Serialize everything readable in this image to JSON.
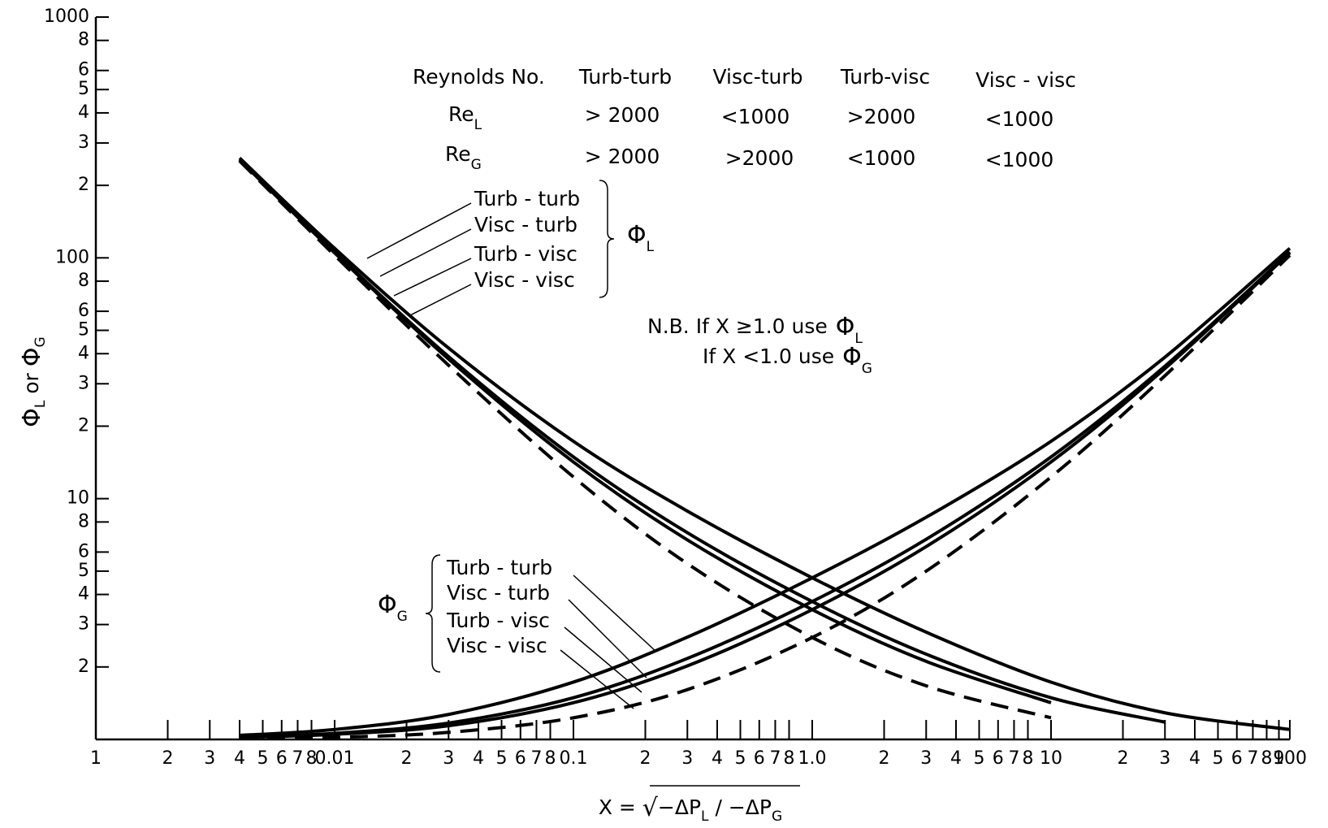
{
  "chart_data": {
    "type": "line",
    "log_x": true,
    "log_y": true,
    "xlim": [
      0.001,
      100
    ],
    "ylim": [
      1,
      1000
    ],
    "xticks": [
      {
        "value": 0.001,
        "label": "1"
      },
      {
        "value": 0.002,
        "label": "2"
      },
      {
        "value": 0.003,
        "label": "3"
      },
      {
        "value": 0.004,
        "label": "4"
      },
      {
        "value": 0.005,
        "label": "5"
      },
      {
        "value": 0.006,
        "label": "6"
      },
      {
        "value": 0.007,
        "label": "7"
      },
      {
        "value": 0.008,
        "label": "8"
      },
      0.01,
      {
        "value": 0.02,
        "label": "2"
      },
      {
        "value": 0.03,
        "label": "3"
      },
      {
        "value": 0.04,
        "label": "4"
      },
      {
        "value": 0.05,
        "label": "5"
      },
      {
        "value": 0.06,
        "label": "6"
      },
      {
        "value": 0.07,
        "label": "7"
      },
      {
        "value": 0.08,
        "label": "8"
      },
      0.1,
      {
        "value": 0.2,
        "label": "2"
      },
      {
        "value": 0.3,
        "label": "3"
      },
      {
        "value": 0.4,
        "label": "4"
      },
      {
        "value": 0.5,
        "label": "5"
      },
      {
        "value": 0.6,
        "label": "6"
      },
      {
        "value": 0.7,
        "label": "7"
      },
      {
        "value": 0.8,
        "label": "8"
      },
      {
        "value": 1,
        "label": "1.0"
      },
      2,
      3,
      4,
      5,
      6,
      7,
      8,
      10,
      {
        "value": 20,
        "label": "2"
      },
      {
        "value": 30,
        "label": "3"
      },
      {
        "value": 40,
        "label": "4"
      },
      {
        "value": 50,
        "label": "5"
      },
      {
        "value": 60,
        "label": "6"
      },
      {
        "value": 70,
        "label": "7"
      },
      {
        "value": 80,
        "label": "8"
      },
      {
        "value": 90,
        "label": "9"
      },
      100
    ],
    "yticks": [
      2,
      3,
      4,
      5,
      6,
      8,
      10,
      {
        "value": 20,
        "label": "2"
      },
      {
        "value": 30,
        "label": "3"
      },
      {
        "value": 40,
        "label": "4"
      },
      {
        "value": 50,
        "label": "5"
      },
      {
        "value": 60,
        "label": "6"
      },
      {
        "value": 80,
        "label": "8"
      },
      100,
      {
        "value": 200,
        "label": "2"
      },
      {
        "value": 300,
        "label": "3"
      },
      {
        "value": 400,
        "label": "4"
      },
      {
        "value": 500,
        "label": "5"
      },
      {
        "value": 600,
        "label": "6"
      },
      {
        "value": 800,
        "label": "8"
      },
      1000
    ],
    "y_label": {
      "symbol1": "Φ",
      "sub1": "L",
      "mid": " or ",
      "symbol2": "Φ",
      "sub2": "G"
    },
    "x_label": {
      "lhs": "X = ",
      "root": "√",
      "part1": "−ΔP",
      "sub1": "L",
      "part2": " / −ΔP",
      "sub2": "G"
    },
    "table": {
      "header": [
        "Reynolds No.",
        "Turb-turb",
        "Visc-turb",
        "Turb-visc",
        "Visc - visc"
      ],
      "rows": [
        {
          "label": "Re",
          "sub": "L",
          "cells": [
            "> 2000",
            "<1000",
            ">2000",
            "<1000"
          ]
        },
        {
          "label": "Re",
          "sub": "G",
          "cells": [
            "> 2000",
            ">2000",
            "<1000",
            "<1000"
          ]
        }
      ]
    },
    "note": {
      "line1": "N.B. If X ≥1.0 use",
      "line2": "If X <1.0 use",
      "symbol": "Φ",
      "sub1": "L",
      "sub2": "G"
    },
    "group_labels": [
      {
        "symbol": "Φ",
        "sub": "L"
      },
      {
        "symbol": "Φ",
        "sub": "G"
      }
    ],
    "x": [
      0.004,
      0.01,
      0.03,
      0.1,
      0.3,
      1,
      3,
      10,
      30,
      100
    ],
    "series": [
      {
        "name": "Turb - turb",
        "color": "#000",
        "values": [
          259.8,
          109.5,
          42.2,
          17.3,
          8.88,
          4.69,
          2.79,
          1.73,
          1.29,
          1.1
        ]
      },
      {
        "name": "Visc - turb",
        "color": "#000",
        "values": [
          255.9,
          105.8,
          38.9,
          14.9,
          7.22,
          3.74,
          2.26,
          1.49,
          1.18,
          null
        ]
      },
      {
        "name": "Turb - visc",
        "color": "#000",
        "values": [
          255.0,
          104.9,
          38.0,
          14.2,
          6.74,
          3.46,
          2.11,
          1.42,
          null,
          null
        ]
      },
      {
        "name": "Visc - visc",
        "color": "#000",
        "dashed": true,
        "values": [
          252.5,
          102.5,
          35.8,
          12.3,
          5.37,
          2.65,
          1.67,
          1.23,
          null,
          null
        ]
      },
      {
        "name": "Turb - turb",
        "color": "#000",
        "values": [
          1.04,
          1.1,
          1.27,
          1.73,
          2.66,
          4.69,
          8.37,
          17.3,
          38.7,
          109.5
        ]
      },
      {
        "name": "Visc - turb",
        "color": "#000",
        "values": [
          1.02,
          1.06,
          1.17,
          1.49,
          2.17,
          3.74,
          6.78,
          14.9,
          35.5,
          105.8
        ]
      },
      {
        "name": "Turb - visc",
        "color": "#000",
        "values": [
          1.02,
          1.05,
          1.14,
          1.42,
          2.02,
          3.46,
          6.32,
          14.2,
          34.7,
          104.9
        ]
      },
      {
        "name": "Visc - visc",
        "color": "#000",
        "dashed": true,
        "values": [
          1.01,
          1.02,
          1.07,
          1.23,
          1.61,
          2.65,
          5.0,
          12.3,
          32.4,
          102.5
        ]
      }
    ]
  }
}
